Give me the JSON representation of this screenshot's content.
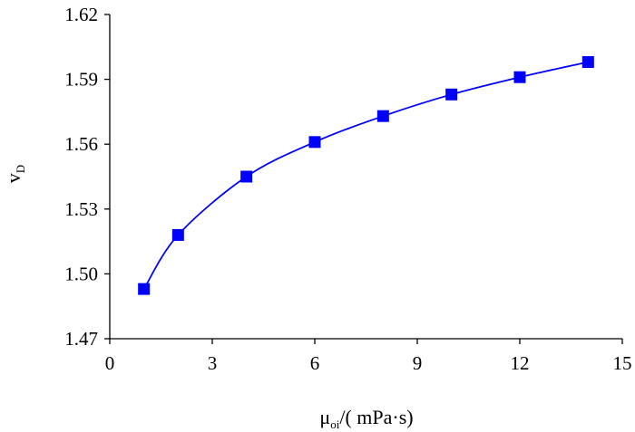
{
  "chart_data": {
    "type": "line",
    "title": "",
    "xlabel": {
      "main": "μ",
      "sub": "oi",
      "rest": "/( mPa·s)"
    },
    "ylabel": {
      "main": "v",
      "sub": "D"
    },
    "xlim": [
      0,
      15
    ],
    "ylim": [
      1.47,
      1.62
    ],
    "x_ticks": [
      0,
      3,
      6,
      9,
      12,
      15
    ],
    "x_tick_labels": [
      "0",
      "3",
      "6",
      "9",
      "12",
      "15"
    ],
    "y_ticks": [
      1.47,
      1.5,
      1.53,
      1.56,
      1.59,
      1.62
    ],
    "y_tick_labels": [
      "1.47",
      "1.50",
      "1.53",
      "1.56",
      "1.59",
      "1.62"
    ],
    "grid": false,
    "series": [
      {
        "color": "#0000ff",
        "marker": "square",
        "points": [
          {
            "x": 1,
            "y": 1.493
          },
          {
            "x": 2,
            "y": 1.518
          },
          {
            "x": 4,
            "y": 1.545
          },
          {
            "x": 6,
            "y": 1.561
          },
          {
            "x": 8,
            "y": 1.573
          },
          {
            "x": 10,
            "y": 1.583
          },
          {
            "x": 12,
            "y": 1.591
          },
          {
            "x": 14,
            "y": 1.598
          }
        ]
      }
    ]
  }
}
